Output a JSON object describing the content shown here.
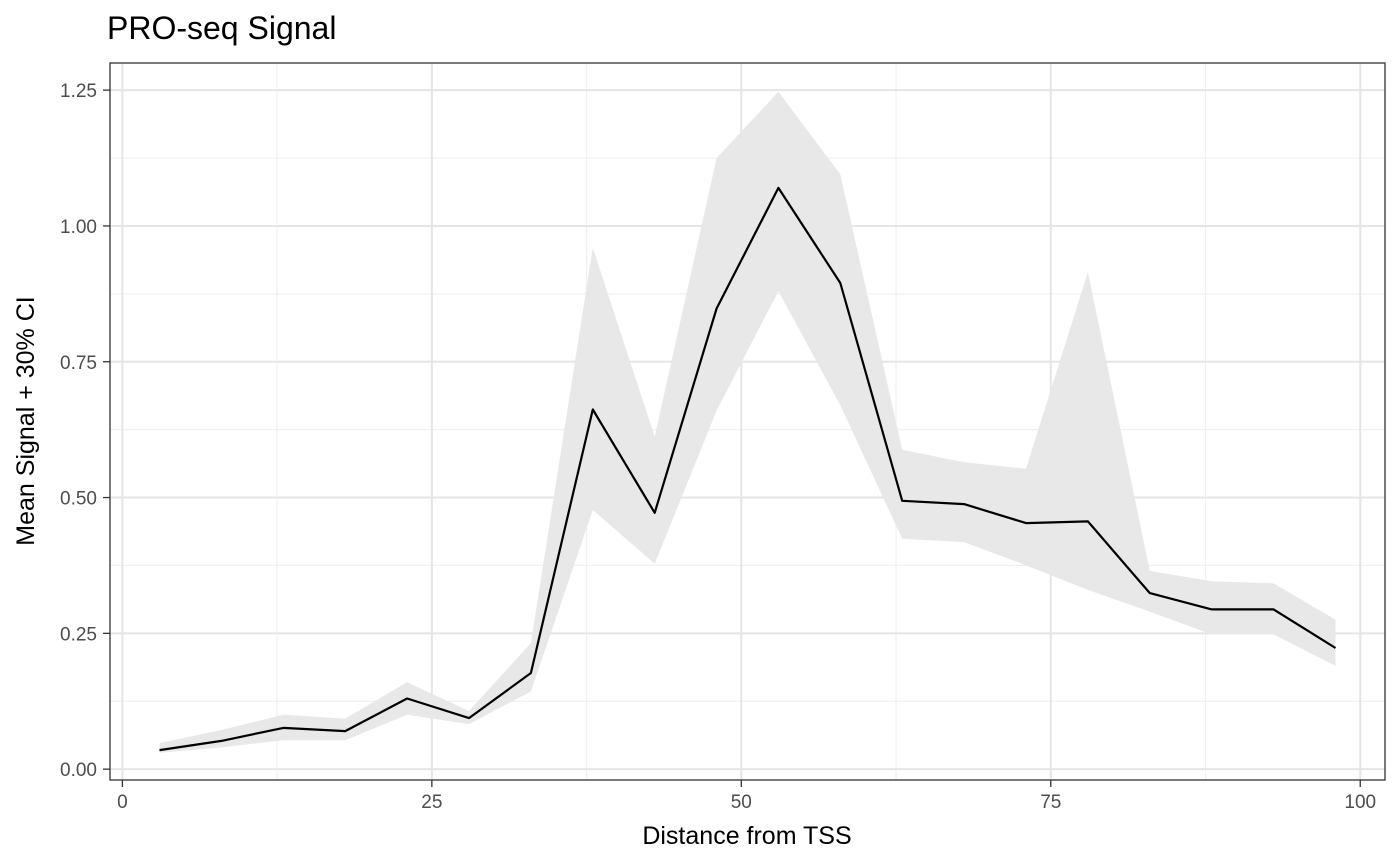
{
  "chart_data": {
    "type": "line",
    "title": "PRO-seq Signal",
    "xlabel": "Distance from TSS",
    "ylabel": "Mean Signal + 30% CI",
    "xlim": [
      -1,
      102
    ],
    "ylim": [
      -0.02,
      1.3
    ],
    "x_ticks": [
      0,
      25,
      50,
      75,
      100
    ],
    "x_tick_labels": [
      "0",
      "25",
      "50",
      "75",
      "100"
    ],
    "y_ticks": [
      0,
      0.25,
      0.5,
      0.75,
      1.0,
      1.25
    ],
    "y_tick_labels": [
      "0.00",
      "0.25",
      "0.50",
      "0.75",
      "1.00",
      "1.25"
    ],
    "grid": true,
    "legend": "none",
    "colors": {
      "line": "#000000",
      "ribbon": "#e8e8e8"
    },
    "series": [
      {
        "x": [
          3,
          8,
          13,
          18,
          23,
          28,
          33,
          38,
          43,
          48,
          53,
          58,
          63,
          68,
          73,
          78,
          83,
          88,
          93,
          98
        ],
        "values": [
          0.035,
          0.052,
          0.076,
          0.07,
          0.13,
          0.094,
          0.177,
          0.662,
          0.472,
          0.848,
          1.07,
          0.895,
          0.494,
          0.488,
          0.453,
          0.456,
          0.324,
          0.294,
          0.294,
          0.223
        ],
        "lower": [
          0.03,
          0.04,
          0.053,
          0.053,
          0.1,
          0.083,
          0.143,
          0.477,
          0.378,
          0.66,
          0.88,
          0.67,
          0.424,
          0.418,
          0.375,
          0.33,
          0.29,
          0.248,
          0.248,
          0.19
        ],
        "upper": [
          0.048,
          0.072,
          0.1,
          0.093,
          0.16,
          0.107,
          0.232,
          0.96,
          0.612,
          1.125,
          1.247,
          1.095,
          0.588,
          0.565,
          0.553,
          0.915,
          0.365,
          0.346,
          0.342,
          0.275
        ]
      }
    ]
  }
}
